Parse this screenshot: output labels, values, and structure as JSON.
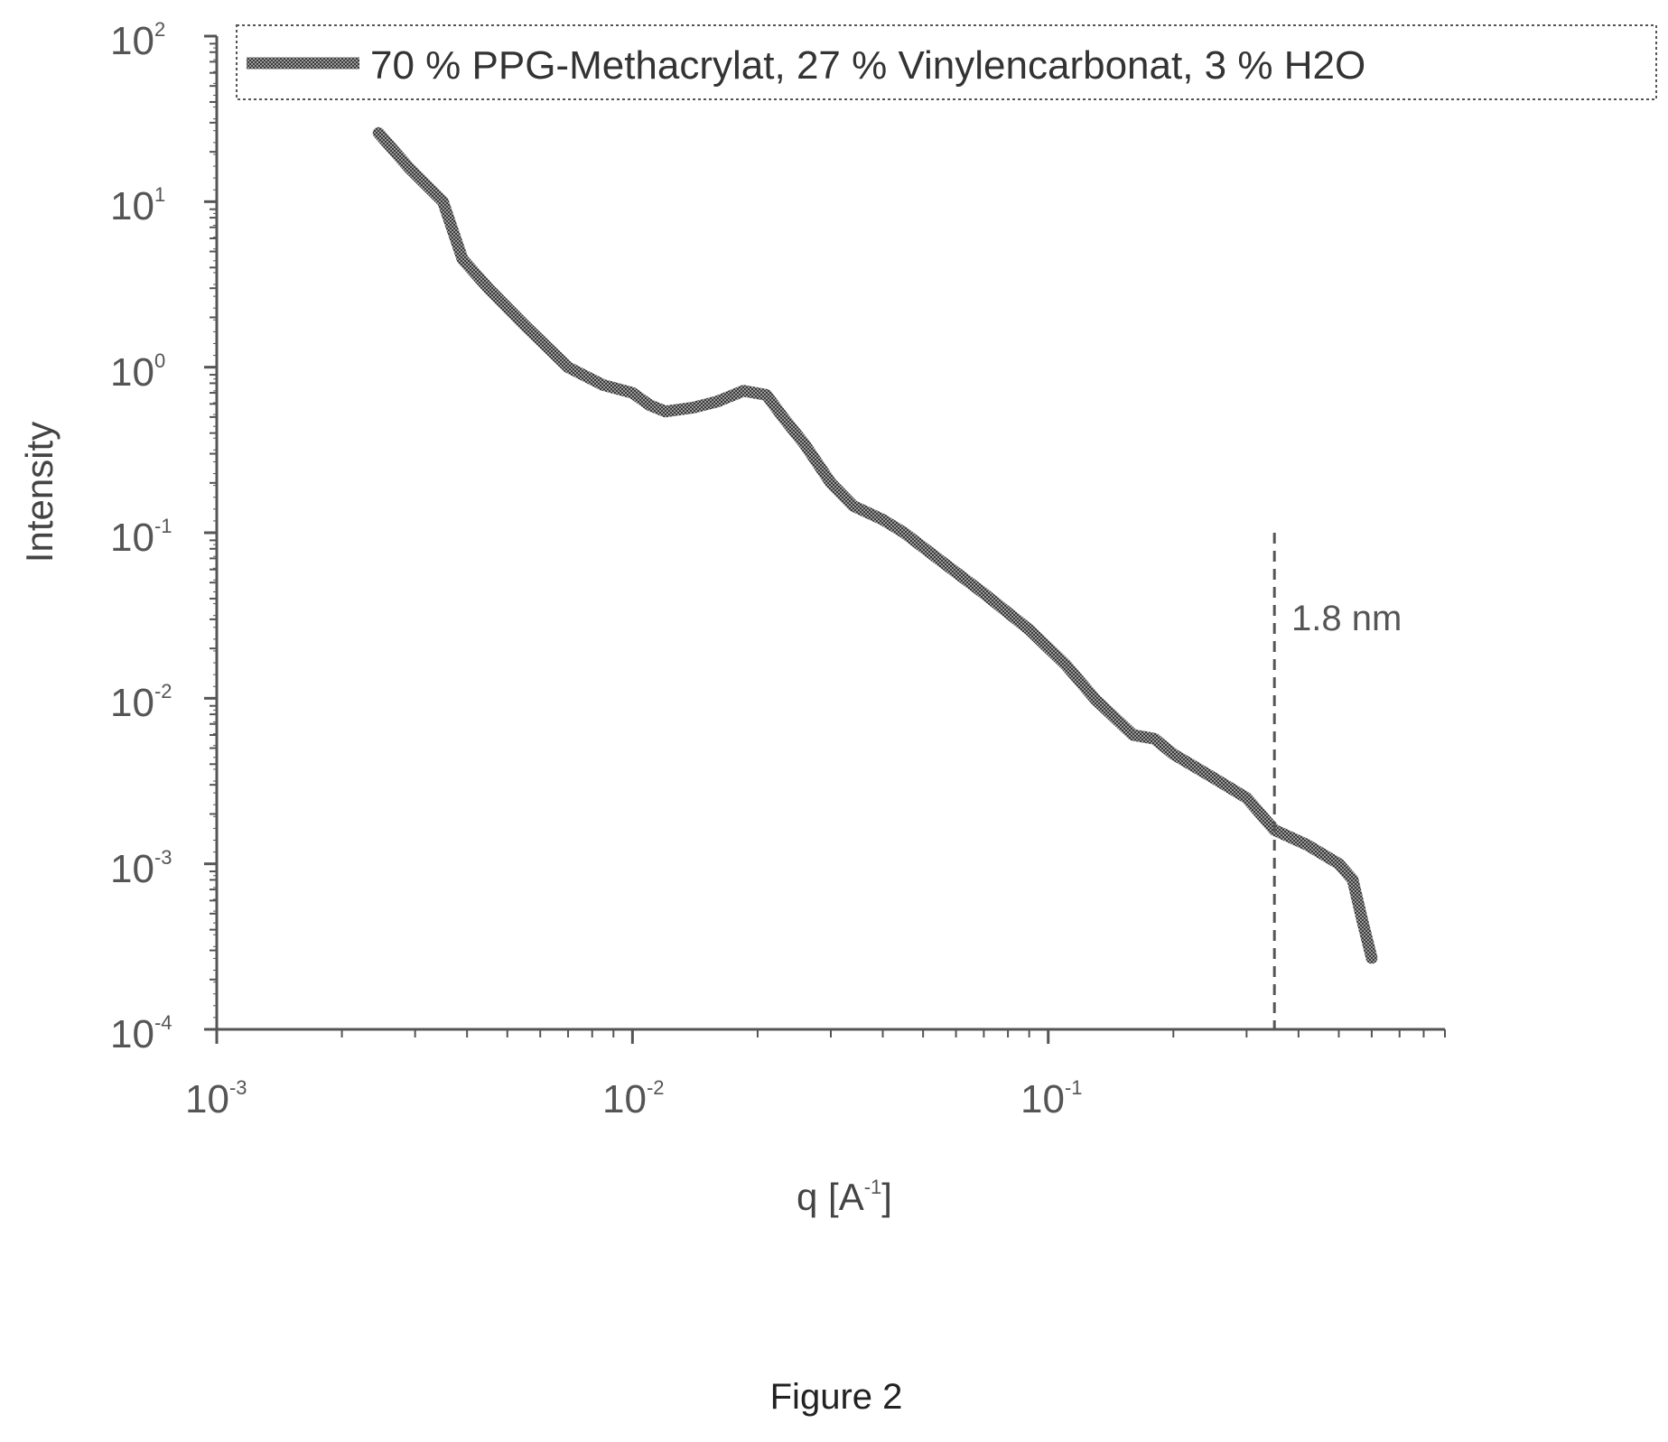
{
  "chart_data": {
    "type": "line",
    "x_scale": "log",
    "y_scale": "log",
    "xlim": [
      0.001,
      0.9
    ],
    "ylim": [
      0.0001,
      100
    ],
    "x_ticks": [
      {
        "base": "10",
        "exp": "-3"
      },
      {
        "base": "10",
        "exp": "-2"
      },
      {
        "base": "10",
        "exp": "-1"
      }
    ],
    "y_ticks": [
      {
        "base": "10",
        "exp": "2"
      },
      {
        "base": "10",
        "exp": "1"
      },
      {
        "base": "10",
        "exp": "0"
      },
      {
        "base": "10",
        "exp": "-1"
      },
      {
        "base": "10",
        "exp": "-2"
      },
      {
        "base": "10",
        "exp": "-3"
      },
      {
        "base": "10",
        "exp": "-4"
      }
    ],
    "xlabel": {
      "main": "q [A",
      "sup": "-1",
      "end": "]"
    },
    "ylabel": "Intensity",
    "legend_position": "top",
    "series": [
      {
        "name": "70 % PPG-Methacrylat, 27 % Vinylencarbonat, 3 % H2O",
        "color": "#555555",
        "points": [
          [
            0.00245,
            26
          ],
          [
            0.0029,
            16
          ],
          [
            0.0035,
            10
          ],
          [
            0.0039,
            4.5
          ],
          [
            0.0045,
            3.0
          ],
          [
            0.0055,
            1.8
          ],
          [
            0.007,
            1.0
          ],
          [
            0.0085,
            0.78
          ],
          [
            0.01,
            0.7
          ],
          [
            0.011,
            0.59
          ],
          [
            0.012,
            0.54
          ],
          [
            0.014,
            0.57
          ],
          [
            0.016,
            0.62
          ],
          [
            0.0185,
            0.72
          ],
          [
            0.021,
            0.68
          ],
          [
            0.023,
            0.5
          ],
          [
            0.026,
            0.34
          ],
          [
            0.03,
            0.2
          ],
          [
            0.034,
            0.145
          ],
          [
            0.04,
            0.12
          ],
          [
            0.045,
            0.1
          ],
          [
            0.055,
            0.068
          ],
          [
            0.07,
            0.043
          ],
          [
            0.09,
            0.026
          ],
          [
            0.11,
            0.016
          ],
          [
            0.13,
            0.0098
          ],
          [
            0.16,
            0.006
          ],
          [
            0.18,
            0.0057
          ],
          [
            0.2,
            0.0046
          ],
          [
            0.25,
            0.0033
          ],
          [
            0.3,
            0.0025
          ],
          [
            0.35,
            0.0016
          ],
          [
            0.42,
            0.0013
          ],
          [
            0.5,
            0.001
          ],
          [
            0.54,
            0.0008
          ],
          [
            0.57,
            0.00045
          ],
          [
            0.6,
            0.00027
          ]
        ]
      }
    ],
    "annotations": [
      {
        "text": "1.8 nm",
        "x": 0.35,
        "y_from": 0.0001,
        "y_to": 0.1,
        "style": "dashed vertical line"
      }
    ]
  },
  "caption": "Figure 2"
}
